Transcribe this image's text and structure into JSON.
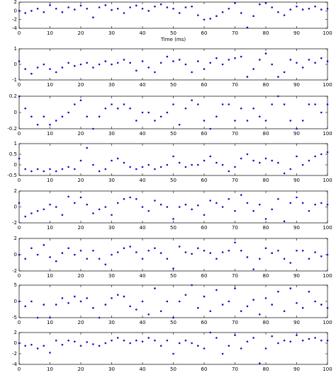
{
  "chart_data": [
    {
      "type": "scatter",
      "xlabel": "Time (ms)",
      "color": "#1010c8",
      "xlim": [
        0,
        100
      ],
      "xticks": [
        0,
        10,
        20,
        30,
        40,
        50,
        60,
        70,
        80,
        90,
        100
      ],
      "ylim": [
        -4,
        2
      ],
      "yticks": [
        -4,
        -2,
        0,
        2
      ],
      "x": [
        0,
        2,
        4,
        6,
        8,
        10,
        12,
        14,
        16,
        18,
        20,
        22,
        24,
        26,
        28,
        30,
        32,
        34,
        36,
        38,
        40,
        42,
        44,
        46,
        48,
        50,
        52,
        54,
        56,
        58,
        60,
        62,
        64,
        66,
        68,
        70,
        72,
        74,
        76,
        78,
        80,
        82,
        84,
        86,
        88,
        90,
        92,
        94,
        96,
        98,
        100
      ],
      "values": [
        0,
        -0.5,
        0,
        0.5,
        -0.3,
        1.3,
        0.5,
        -0.3,
        0.8,
        0.3,
        1.2,
        0.5,
        -1.5,
        0.8,
        1.3,
        0.2,
        0.5,
        -0.5,
        0.8,
        1.2,
        0.5,
        0,
        1,
        1.5,
        0.8,
        0.5,
        -0.5,
        0.8,
        1,
        -1,
        -2,
        -1.8,
        -1.2,
        -0.3,
        0.5,
        1.8,
        -0.5,
        -3.8,
        -1.2,
        1.5,
        1.8,
        0.8,
        -0.3,
        -1,
        0.3,
        1,
        0.3,
        0.5,
        1,
        0.3,
        0.5
      ]
    },
    {
      "type": "scatter",
      "color": "#1010c8",
      "xlim": [
        0,
        100
      ],
      "xticks": [
        0,
        10,
        20,
        30,
        40,
        50,
        60,
        70,
        80,
        90,
        100
      ],
      "ylim": [
        -1,
        1
      ],
      "yticks": [
        -1,
        0,
        1
      ],
      "x": [
        0,
        2,
        4,
        6,
        8,
        10,
        12,
        14,
        16,
        18,
        20,
        22,
        24,
        26,
        28,
        30,
        32,
        34,
        36,
        38,
        40,
        42,
        44,
        46,
        48,
        50,
        52,
        54,
        56,
        58,
        60,
        62,
        64,
        66,
        68,
        70,
        72,
        74,
        76,
        78,
        80,
        82,
        84,
        86,
        88,
        90,
        92,
        94,
        96,
        98,
        100
      ],
      "values": [
        0.2,
        -0.3,
        -0.6,
        -0.2,
        0,
        -0.3,
        -0.5,
        -0.2,
        0.1,
        -0.1,
        0,
        0.1,
        -0.2,
        0,
        0.2,
        0,
        0.1,
        0.3,
        0.1,
        -0.4,
        0.2,
        -0.2,
        -0.5,
        0.1,
        0.5,
        0.2,
        0.3,
        0,
        -0.5,
        0.2,
        -0.3,
        0.1,
        0.4,
        0,
        0.3,
        0.4,
        0.5,
        -0.8,
        -0.3,
        0.3,
        0.7,
        0,
        -0.8,
        -0.5,
        0.3,
        0.1,
        -0.2,
        0.3,
        0.1,
        0.4,
        0.2
      ]
    },
    {
      "type": "scatter",
      "color": "#1010c8",
      "xlim": [
        0,
        100
      ],
      "xticks": [
        0,
        10,
        20,
        30,
        40,
        50,
        60,
        70,
        80,
        90,
        100
      ],
      "ylim": [
        -0.2,
        0.2
      ],
      "yticks": [
        -0.2,
        0,
        0.2
      ],
      "x": [
        0,
        2,
        4,
        6,
        8,
        10,
        12,
        14,
        16,
        18,
        20,
        22,
        24,
        26,
        28,
        30,
        32,
        34,
        36,
        38,
        40,
        42,
        44,
        46,
        48,
        50,
        52,
        54,
        56,
        58,
        60,
        62,
        64,
        66,
        68,
        70,
        72,
        74,
        76,
        78,
        80,
        82,
        84,
        86,
        88,
        90,
        92,
        94,
        96,
        98,
        100
      ],
      "values": [
        0.2,
        0.05,
        -0.05,
        -0.15,
        -0.05,
        -0.15,
        -0.1,
        -0.05,
        0,
        0.1,
        0.15,
        -0.05,
        -0.2,
        -0.05,
        0.05,
        0.1,
        0.05,
        0.1,
        0.05,
        -0.1,
        0,
        0,
        -0.1,
        -0.05,
        0,
        0.1,
        -0.15,
        0.05,
        0.15,
        0.1,
        -0.1,
        -0.2,
        -0.05,
        0.1,
        0.1,
        -0.1,
        0.05,
        -0.1,
        0.05,
        -0.05,
        -0.1,
        0.1,
        0.2,
        0.1,
        -0.1,
        -0.2,
        -0.1,
        0.1,
        0.1,
        0,
        0.1
      ]
    },
    {
      "type": "scatter",
      "color": "#1010c8",
      "xlim": [
        0,
        100
      ],
      "xticks": [
        0,
        10,
        20,
        30,
        40,
        50,
        60,
        70,
        80,
        90,
        100
      ],
      "ylim": [
        -0.5,
        1
      ],
      "yticks": [
        -0.5,
        0,
        0.5,
        1
      ],
      "x": [
        0,
        2,
        4,
        6,
        8,
        10,
        12,
        14,
        16,
        18,
        20,
        22,
        24,
        26,
        28,
        30,
        32,
        34,
        36,
        38,
        40,
        42,
        44,
        46,
        48,
        50,
        52,
        54,
        56,
        58,
        60,
        62,
        64,
        66,
        68,
        70,
        72,
        74,
        76,
        78,
        80,
        82,
        84,
        86,
        88,
        90,
        92,
        94,
        96,
        98,
        100
      ],
      "values": [
        0.3,
        -0.2,
        -0.3,
        -0.2,
        -0.3,
        -0.2,
        -0.3,
        -0.2,
        -0.1,
        -0.2,
        0.2,
        0.8,
        0,
        -0.3,
        -0.2,
        0.2,
        0.3,
        0.1,
        -0.1,
        -0.2,
        -0.1,
        0,
        -0.2,
        -0.1,
        0,
        0.4,
        0.1,
        -0.1,
        0,
        0,
        0.2,
        0.4,
        0.1,
        0,
        -0.3,
        -0.1,
        0.3,
        0.5,
        0.2,
        0.1,
        0.3,
        0.2,
        0.1,
        -0.4,
        -0.2,
        0.4,
        0,
        0.2,
        0.4,
        0.5,
        0.6
      ]
    },
    {
      "type": "scatter",
      "color": "#1010c8",
      "xlim": [
        0,
        100
      ],
      "xticks": [
        0,
        10,
        20,
        30,
        40,
        50,
        60,
        70,
        80,
        90,
        100
      ],
      "ylim": [
        -2,
        2
      ],
      "yticks": [
        -2,
        0,
        2
      ],
      "x": [
        0,
        2,
        4,
        6,
        8,
        10,
        12,
        14,
        16,
        18,
        20,
        22,
        24,
        26,
        28,
        30,
        32,
        34,
        36,
        38,
        40,
        42,
        44,
        46,
        48,
        50,
        52,
        54,
        56,
        58,
        60,
        62,
        64,
        66,
        68,
        70,
        72,
        74,
        76,
        78,
        80,
        82,
        84,
        86,
        88,
        90,
        92,
        94,
        96,
        98,
        100
      ],
      "values": [
        0.5,
        -1.2,
        -0.8,
        -0.5,
        -0.3,
        0.3,
        0,
        -1,
        1.3,
        0.5,
        1.2,
        0.3,
        -0.8,
        -0.3,
        0,
        -1,
        0.5,
        1,
        1.2,
        1,
        0,
        -0.5,
        0.8,
        0.3,
        0,
        -1.5,
        0,
        0.3,
        -0.3,
        0.2,
        -1,
        0.8,
        0.5,
        0,
        1,
        -0.5,
        1.5,
        0.5,
        -0.5,
        0.3,
        -1.5,
        -0.3,
        1,
        -1.8,
        0.5,
        1.2,
        0.5,
        -0.5,
        0.3,
        0.5,
        0.3
      ]
    },
    {
      "type": "scatter",
      "color": "#1010c8",
      "xlim": [
        0,
        100
      ],
      "xticks": [
        0,
        10,
        20,
        30,
        40,
        50,
        60,
        70,
        80,
        90,
        100
      ],
      "ylim": [
        -2,
        2
      ],
      "yticks": [
        -2,
        0,
        2
      ],
      "x": [
        0,
        2,
        4,
        6,
        8,
        10,
        12,
        14,
        16,
        18,
        20,
        22,
        24,
        26,
        28,
        30,
        32,
        34,
        36,
        38,
        40,
        42,
        44,
        46,
        48,
        50,
        52,
        54,
        56,
        58,
        60,
        62,
        64,
        66,
        68,
        70,
        72,
        74,
        76,
        78,
        80,
        82,
        84,
        86,
        88,
        90,
        92,
        94,
        96,
        98,
        100
      ],
      "values": [
        0,
        -0.5,
        0.8,
        0,
        1.2,
        -0.3,
        -0.8,
        0.2,
        0.8,
        0,
        0.5,
        -0.5,
        0.5,
        -0.5,
        -1.2,
        0,
        0.3,
        0.8,
        1,
        0.3,
        -0.5,
        0.5,
        0.8,
        0.2,
        -0.5,
        -1.7,
        1,
        0.3,
        0.1,
        0.8,
        0.5,
        0.2,
        -0.5,
        0.3,
        0.5,
        1.5,
        0.5,
        -0.3,
        -1.8,
        -0.5,
        0.8,
        0.2,
        0.5,
        -0.5,
        -1,
        0.5,
        0.5,
        -0.5,
        0.3,
        -0.2,
        0
      ]
    },
    {
      "type": "scatter",
      "color": "#1010c8",
      "xlim": [
        0,
        100
      ],
      "xticks": [
        0,
        10,
        20,
        30,
        40,
        50,
        60,
        70,
        80,
        90,
        100
      ],
      "ylim": [
        -5,
        5
      ],
      "yticks": [
        -5,
        0,
        5
      ],
      "x": [
        0,
        2,
        4,
        6,
        8,
        10,
        12,
        14,
        16,
        18,
        20,
        22,
        24,
        26,
        28,
        30,
        32,
        34,
        36,
        38,
        40,
        42,
        44,
        46,
        48,
        50,
        52,
        54,
        56,
        58,
        60,
        62,
        64,
        66,
        68,
        70,
        72,
        74,
        76,
        78,
        80,
        82,
        84,
        86,
        88,
        90,
        92,
        94,
        96,
        98,
        100
      ],
      "values": [
        0,
        -1.5,
        0,
        -5,
        -1,
        -5,
        -1,
        1,
        -0.5,
        1.5,
        0,
        1,
        -2,
        -5,
        -1,
        1,
        2,
        1.5,
        -1.5,
        -2.5,
        0,
        -4,
        4,
        -3,
        0,
        -5,
        0,
        2,
        5,
        -2,
        1.5,
        -3,
        3.5,
        -1,
        0,
        4,
        -3,
        -1.5,
        0.5,
        -4,
        1,
        -1,
        3,
        -3,
        4,
        -0.5,
        -2,
        3,
        0,
        -1,
        -2
      ]
    },
    {
      "type": "scatter",
      "color": "#1010c8",
      "xlim": [
        0,
        100
      ],
      "xticks": [
        0,
        10,
        20,
        30,
        40,
        50,
        60,
        70,
        80,
        90,
        100
      ],
      "ylim": [
        -4,
        2
      ],
      "yticks": [
        -4,
        -2,
        0,
        2
      ],
      "x": [
        0,
        2,
        4,
        6,
        8,
        10,
        12,
        14,
        16,
        18,
        20,
        22,
        24,
        26,
        28,
        30,
        32,
        34,
        36,
        38,
        40,
        42,
        44,
        46,
        48,
        50,
        52,
        54,
        56,
        58,
        60,
        62,
        64,
        66,
        68,
        70,
        72,
        74,
        76,
        78,
        80,
        82,
        84,
        86,
        88,
        90,
        92,
        94,
        96,
        98,
        100
      ],
      "values": [
        0,
        -0.5,
        -0.3,
        -1,
        -0.5,
        -1.8,
        0.5,
        -0.3,
        0.5,
        0.3,
        -0.5,
        0.2,
        -0.2,
        -0.5,
        0,
        0.5,
        1,
        0.5,
        0,
        0.5,
        0.3,
        1,
        0.5,
        -0.5,
        0.5,
        -2,
        0,
        0.5,
        0,
        -0.5,
        -1,
        2,
        1,
        -2,
        -0.5,
        1.5,
        -1,
        0.3,
        1,
        -3.8,
        -1,
        1.3,
        0,
        0.5,
        0.3,
        1.5,
        0.5,
        0.8,
        1,
        0.5,
        0.5
      ]
    }
  ]
}
